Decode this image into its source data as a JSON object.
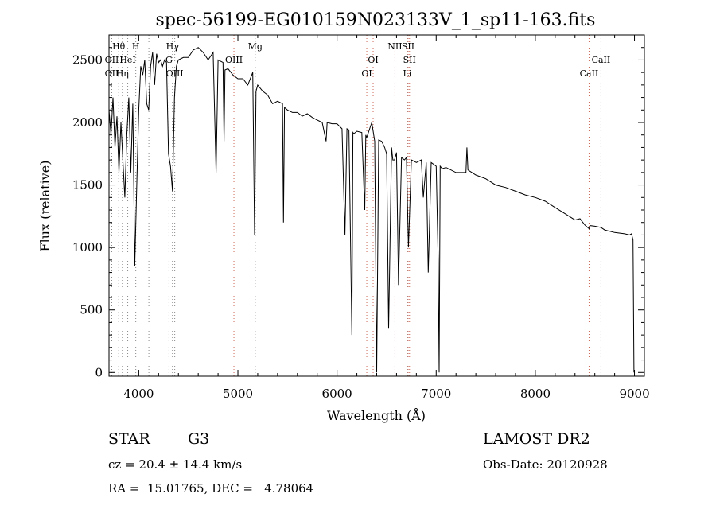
{
  "chart_data": {
    "type": "line",
    "title": "spec-56199-EG010159N023133V_1_sp11-163.fits",
    "xlabel": "Wavelength (Å)",
    "ylabel": "Flux (relative)",
    "xlim": [
      3700,
      9100
    ],
    "ylim": [
      -30,
      2700
    ],
    "xticks": [
      4000,
      5000,
      6000,
      7000,
      8000,
      9000
    ],
    "yticks": [
      0,
      500,
      1000,
      1500,
      2000,
      2500
    ],
    "grid": false,
    "series": [
      {
        "x": [
          3700,
          3720,
          3740,
          3760,
          3780,
          3800,
          3820,
          3840,
          3860,
          3880,
          3900,
          3920,
          3940,
          3960,
          3980,
          4000,
          4020,
          4040,
          4060,
          4080,
          4100,
          4120,
          4140,
          4160,
          4180,
          4200,
          4220,
          4240,
          4260,
          4280,
          4300,
          4320,
          4340,
          4360,
          4380,
          4400,
          4450,
          4500,
          4550,
          4600,
          4650,
          4700,
          4750,
          4780,
          4800,
          4850,
          4860,
          4870,
          4900,
          4950,
          5000,
          5050,
          5100,
          5150,
          5168,
          5183,
          5200,
          5250,
          5300,
          5350,
          5400,
          5450,
          5460,
          5470,
          5500,
          5550,
          5600,
          5650,
          5700,
          5750,
          5800,
          5850,
          5890,
          5900,
          5950,
          6000,
          6050,
          6080,
          6100,
          6120,
          6150,
          6160,
          6170,
          6200,
          6250,
          6280,
          6290,
          6300,
          6350,
          6380,
          6400,
          6420,
          6450,
          6480,
          6500,
          6520,
          6550,
          6563,
          6580,
          6600,
          6620,
          6650,
          6680,
          6700,
          6720,
          6750,
          6800,
          6850,
          6870,
          6900,
          6920,
          6950,
          7000,
          7020,
          7030,
          7040,
          7060,
          7100,
          7200,
          7300,
          7310,
          7320,
          7400,
          7500,
          7600,
          7700,
          7800,
          7900,
          8000,
          8100,
          8200,
          8300,
          8400,
          8450,
          8500,
          8542,
          8550,
          8600,
          8662,
          8700,
          8800,
          8900,
          8950,
          8970,
          8985,
          8995
        ],
        "y": [
          2100,
          1900,
          2200,
          1800,
          2050,
          1600,
          2000,
          1700,
          1400,
          1900,
          2200,
          1600,
          2150,
          850,
          1500,
          2100,
          2450,
          2380,
          2500,
          2150,
          2100,
          2450,
          2560,
          2300,
          2550,
          2480,
          2500,
          2450,
          2500,
          2480,
          1750,
          1650,
          1450,
          2200,
          2450,
          2500,
          2520,
          2520,
          2580,
          2600,
          2560,
          2500,
          2560,
          1600,
          2500,
          2480,
          1850,
          2420,
          2430,
          2380,
          2350,
          2350,
          2300,
          2400,
          1100,
          2250,
          2300,
          2250,
          2220,
          2150,
          2170,
          2150,
          1200,
          2120,
          2100,
          2080,
          2080,
          2050,
          2070,
          2040,
          2020,
          2000,
          1850,
          2000,
          1990,
          1990,
          1950,
          1100,
          1950,
          1940,
          300,
          1920,
          1910,
          1930,
          1920,
          1300,
          1900,
          1880,
          2000,
          1850,
          0,
          1860,
          1850,
          1800,
          1750,
          350,
          1800,
          1700,
          1700,
          1760,
          700,
          1720,
          1700,
          1720,
          1000,
          1700,
          1680,
          1700,
          1400,
          1680,
          800,
          1680,
          1650,
          900,
          0,
          1650,
          1630,
          1640,
          1600,
          1600,
          1800,
          1620,
          1580,
          1550,
          1500,
          1480,
          1450,
          1420,
          1400,
          1370,
          1320,
          1270,
          1220,
          1230,
          1180,
          1150,
          1175,
          1170,
          1160,
          1140,
          1120,
          1110,
          1100,
          1110,
          1060,
          0
        ]
      }
    ],
    "line_labels": [
      {
        "text": "Hθ",
        "x": 3798,
        "row": 1
      },
      {
        "text": "H",
        "x": 3970,
        "row": 1
      },
      {
        "text": "Hγ",
        "x": 4340,
        "row": 1
      },
      {
        "text": "Mg",
        "x": 5175,
        "row": 1
      },
      {
        "text": "NII",
        "x": 6584,
        "row": 1
      },
      {
        "text": "SII",
        "x": 6717,
        "row": 1
      },
      {
        "text": "OII",
        "x": 3728,
        "row": 2
      },
      {
        "text": "HeI",
        "x": 3889,
        "row": 2
      },
      {
        "text": "G",
        "x": 4305,
        "row": 2
      },
      {
        "text": "OIII",
        "x": 4960,
        "row": 2
      },
      {
        "text": "OI",
        "x": 6364,
        "row": 2
      },
      {
        "text": "SII",
        "x": 6731,
        "row": 2
      },
      {
        "text": "CaII",
        "x": 8662,
        "row": 2
      },
      {
        "text": "OII",
        "x": 3728,
        "row": 3
      },
      {
        "text": "Hη",
        "x": 3835,
        "row": 3
      },
      {
        "text": "OIII",
        "x": 4363,
        "row": 3
      },
      {
        "text": "OI",
        "x": 6300,
        "row": 3
      },
      {
        "text": "Li",
        "x": 6708,
        "row": 3
      },
      {
        "text": "CaII",
        "x": 8542,
        "row": 3
      }
    ],
    "line_markers": [
      {
        "x": 3728,
        "color": "#888888"
      },
      {
        "x": 3798,
        "color": "#888888"
      },
      {
        "x": 3835,
        "color": "#888888"
      },
      {
        "x": 3889,
        "color": "#888888"
      },
      {
        "x": 3970,
        "color": "#888888"
      },
      {
        "x": 4102,
        "color": "#888888"
      },
      {
        "x": 4305,
        "color": "#888888"
      },
      {
        "x": 4340,
        "color": "#888888"
      },
      {
        "x": 4363,
        "color": "#888888"
      },
      {
        "x": 4960,
        "color": "#cc6655"
      },
      {
        "x": 5175,
        "color": "#888888"
      },
      {
        "x": 6300,
        "color": "#cc6655"
      },
      {
        "x": 6364,
        "color": "#cc6655"
      },
      {
        "x": 6584,
        "color": "#cc6655"
      },
      {
        "x": 6708,
        "color": "#888888"
      },
      {
        "x": 6717,
        "color": "#cc6655"
      },
      {
        "x": 6731,
        "color": "#cc6655"
      },
      {
        "x": 8542,
        "color": "#cc6655"
      },
      {
        "x": 8662,
        "color": "#888888"
      }
    ]
  },
  "info": {
    "class": "STAR",
    "subclass": "G3",
    "survey": "LAMOST DR2",
    "cz": "cz = 20.4 ± 14.4 km/s",
    "obs_date": "Obs-Date: 20120928",
    "coords": "RA =  15.01765, DEC =   4.78064"
  }
}
